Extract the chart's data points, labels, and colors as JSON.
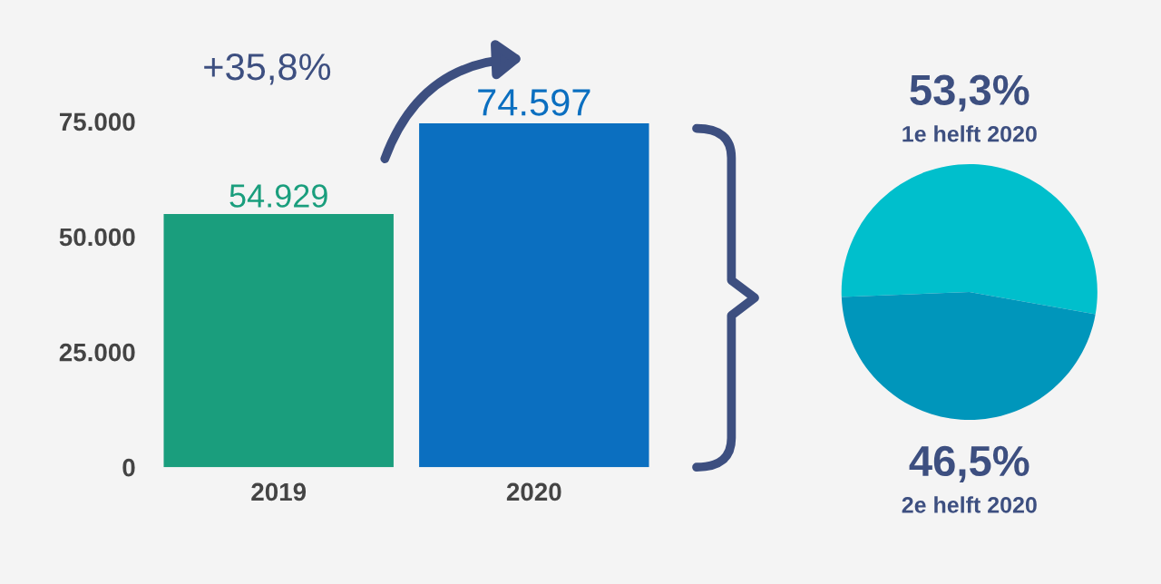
{
  "chart_data": [
    {
      "type": "bar",
      "categories": [
        "2019",
        "2020"
      ],
      "values": [
        54929,
        74597
      ],
      "colors": [
        "#1a9e7d",
        "#0b6fc0"
      ],
      "value_labels": [
        "54.929",
        "74.597"
      ],
      "ylim": [
        0,
        76000
      ],
      "yticks": [
        {
          "value": 0,
          "label": "0"
        },
        {
          "value": 25000,
          "label": "25.000"
        },
        {
          "value": 50000,
          "label": "50.000"
        },
        {
          "value": 75000,
          "label": "75.000"
        }
      ],
      "grid": false,
      "annotations": [
        "+35,8%"
      ]
    },
    {
      "type": "pie",
      "categories": [
        "1e helft 2020",
        "2e helft 2020"
      ],
      "values": [
        53.3,
        46.5
      ],
      "colors": [
        "#00bfcc",
        "#0096bb"
      ],
      "value_labels": [
        "53,3%",
        "46,5%"
      ]
    }
  ]
}
